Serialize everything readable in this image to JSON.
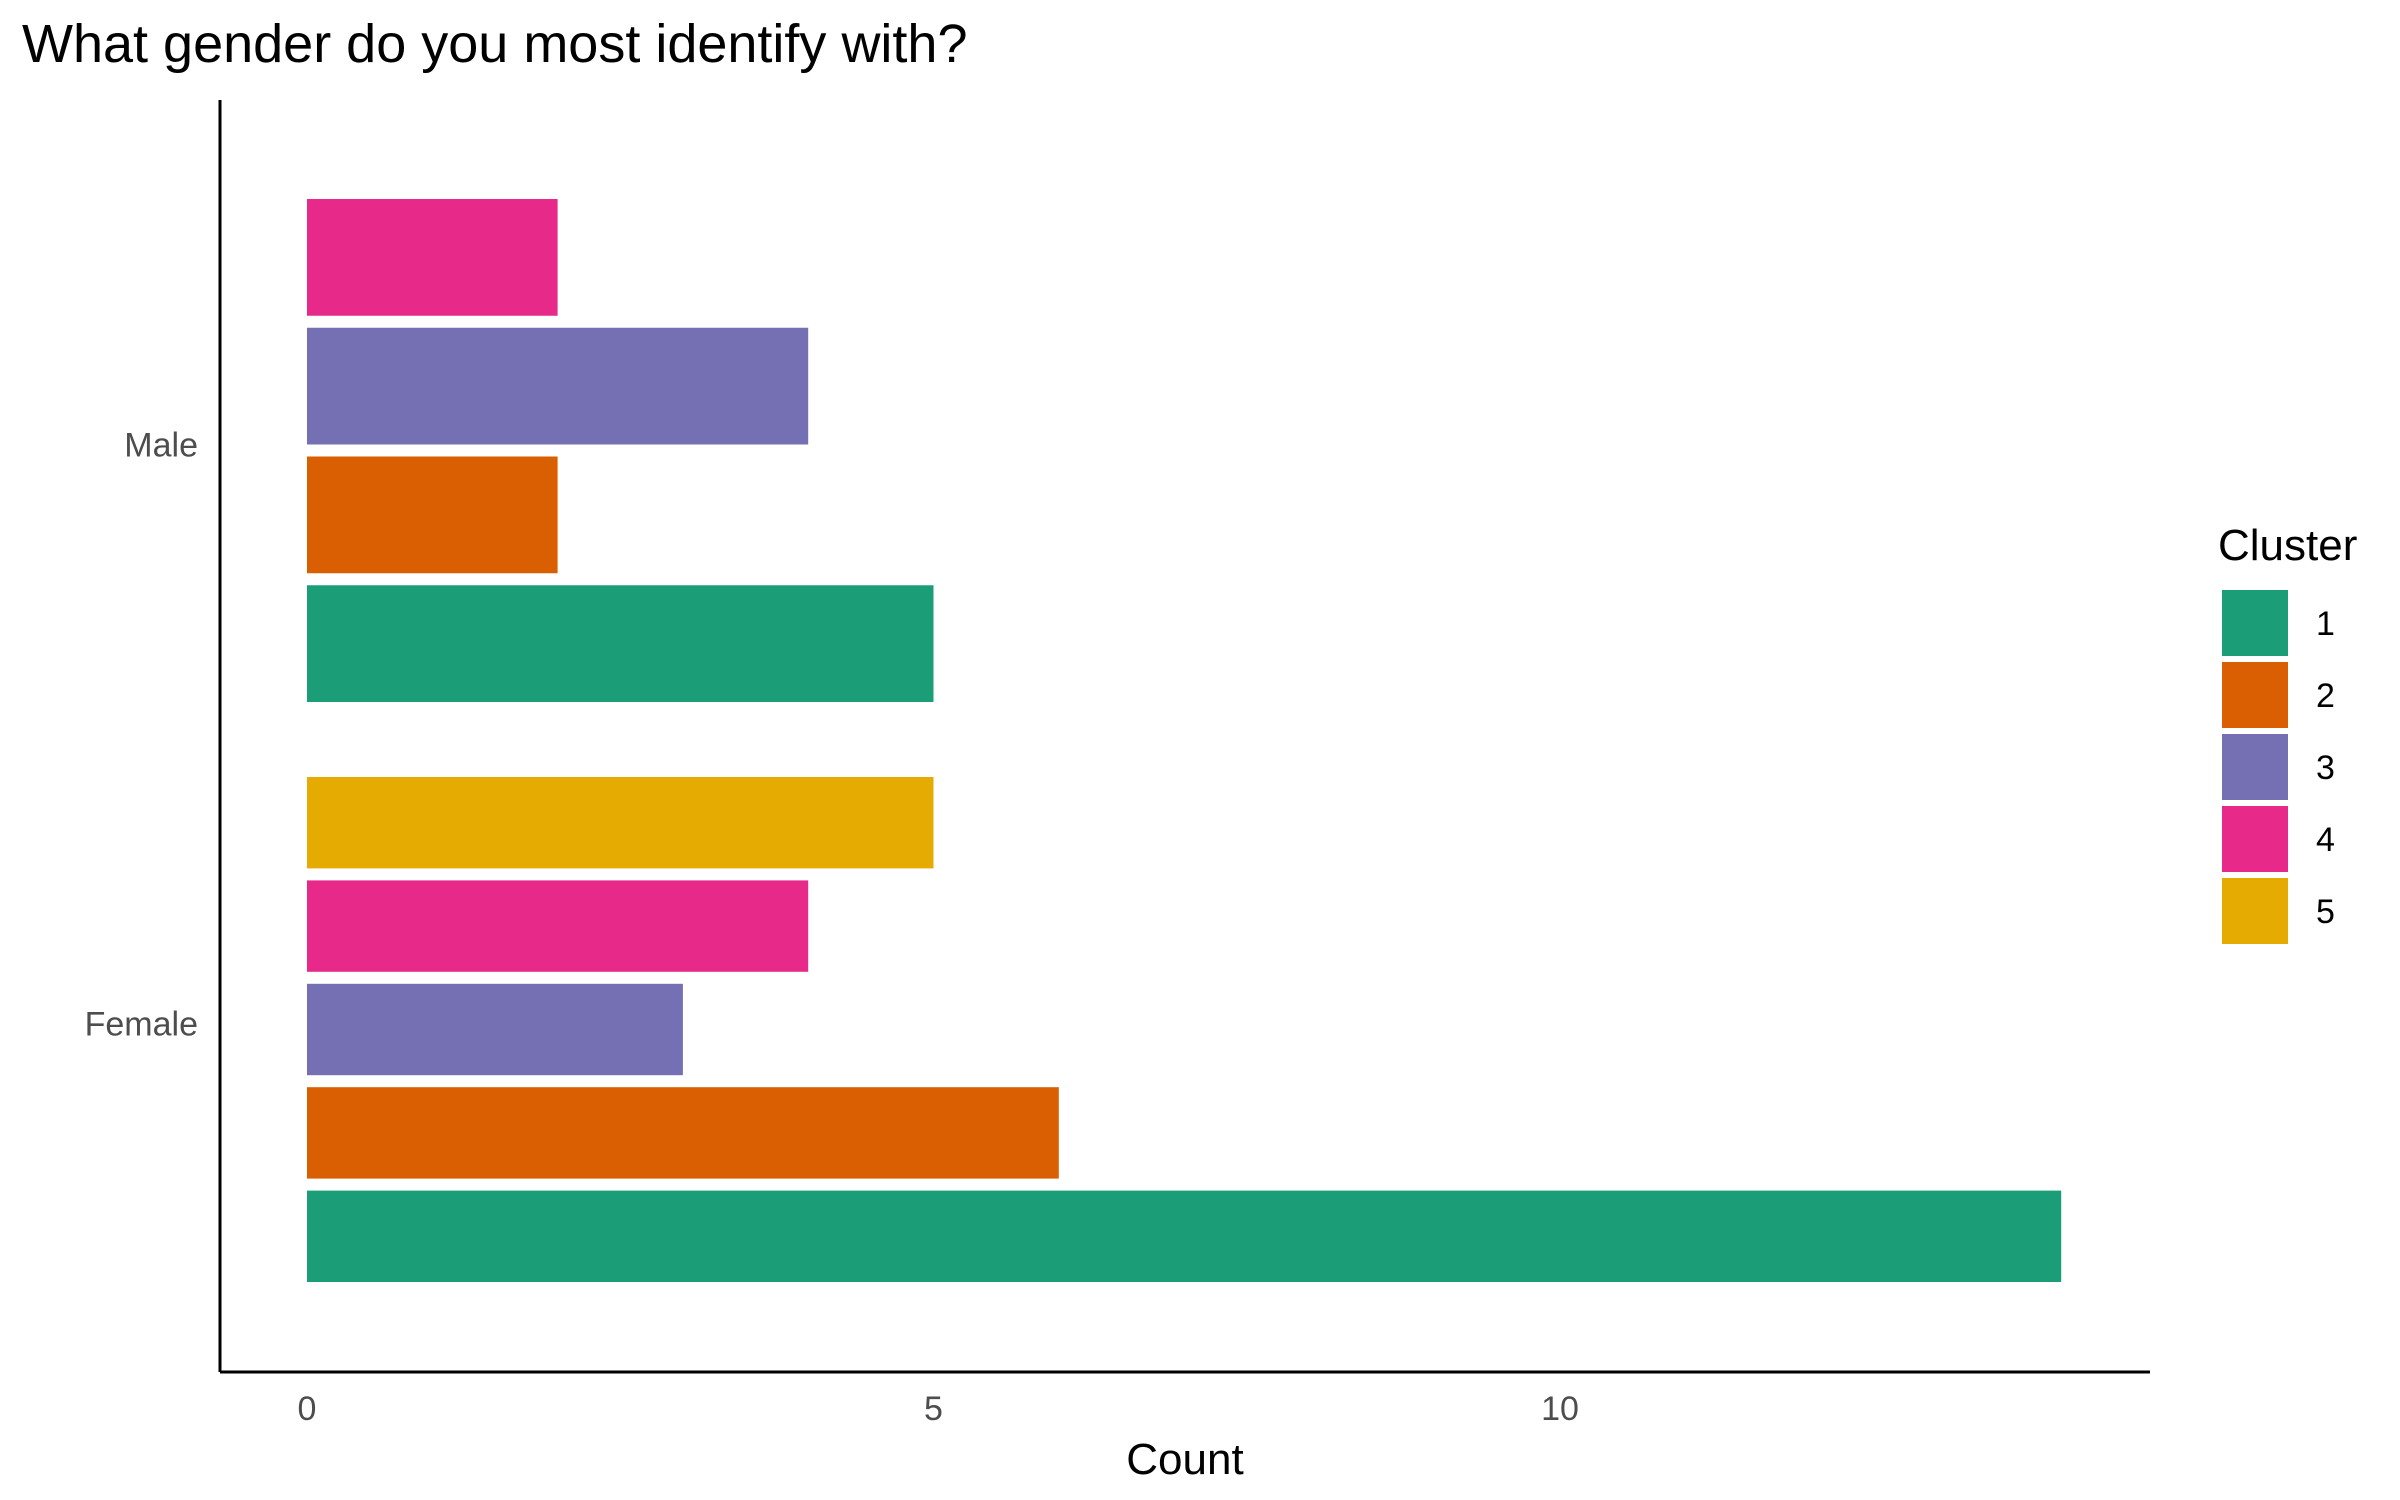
{
  "chart_data": {
    "type": "bar",
    "orientation": "horizontal",
    "title": "What gender do you most identify with?",
    "xlabel": "Count",
    "ylabel": "",
    "xlim": [
      -0.7,
      14.7
    ],
    "x_ticks": [
      0,
      5,
      10
    ],
    "categories": [
      "Female",
      "Male"
    ],
    "series": [
      {
        "name": "1",
        "color": "#1B9E77",
        "values": [
          14,
          5
        ]
      },
      {
        "name": "2",
        "color": "#D95F02",
        "values": [
          6,
          2
        ]
      },
      {
        "name": "3",
        "color": "#7570B3",
        "values": [
          3,
          4
        ]
      },
      {
        "name": "4",
        "color": "#E7298A",
        "values": [
          4,
          2
        ]
      },
      {
        "name": "5",
        "color": "#E6AB02",
        "values": [
          5,
          0
        ]
      }
    ],
    "legend": {
      "title": "Cluster",
      "position": "right"
    },
    "grid": false
  }
}
